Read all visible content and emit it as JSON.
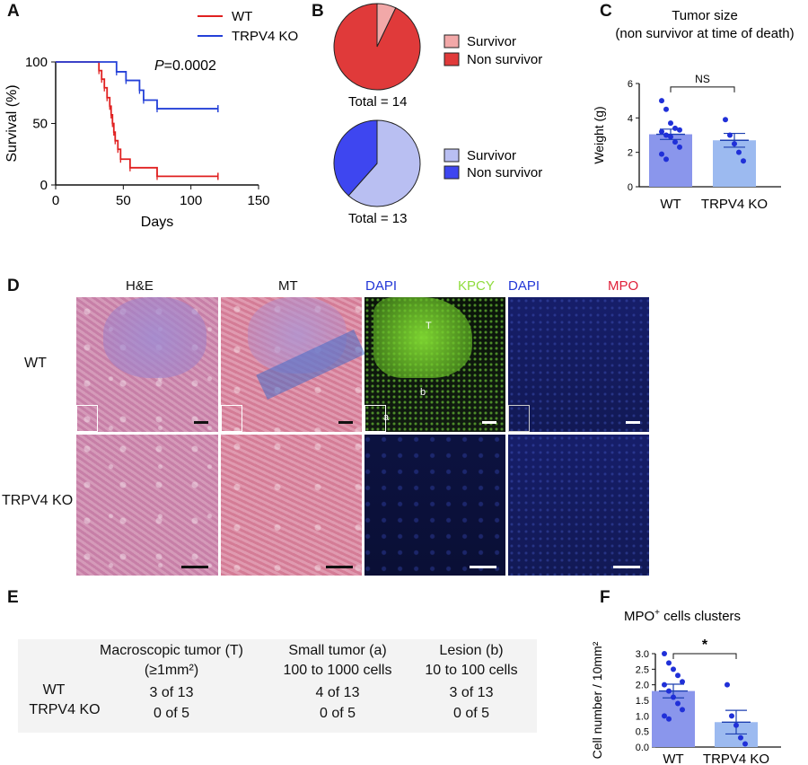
{
  "panels": {
    "A": {
      "label": "A",
      "legend": [
        {
          "name": "WT",
          "color": "#e02020"
        },
        {
          "name": "TRPV4 KO",
          "color": "#2440d8"
        }
      ],
      "pvalue_prefix": "P",
      "pvalue_rest": "=0.0002"
    },
    "B": {
      "label": "B",
      "legend_top": [
        {
          "name": "Survivor",
          "color": "#f2a8a8"
        },
        {
          "name": "Non survivor",
          "color": "#e03a3a"
        }
      ],
      "legend_bottom": [
        {
          "name": "Survivor",
          "color": "#b9bff2"
        },
        {
          "name": "Non survivor",
          "color": "#3e46f0"
        }
      ],
      "total_top": "Total = 14",
      "total_bottom": "Total = 13"
    },
    "C": {
      "label": "C",
      "title_line1": "Tumor size",
      "title_line2": "(non survivor at time of death)",
      "sig": "NS"
    },
    "D": {
      "label": "D",
      "col_he": "H&E",
      "col_mt": "MT",
      "col_dapi1": "DAPI",
      "col_kpcy": "KPCY",
      "col_dapi2": "DAPI",
      "col_mpo": "MPO",
      "row_wt": "WT",
      "row_ko": "TRPV4 KO",
      "marker_t": "T",
      "marker_b": "b",
      "marker_a": "a",
      "colors": {
        "dapi": "#2236d6",
        "kpcy": "#8fdc3c",
        "mpo": "#e0203a"
      }
    },
    "E": {
      "label": "E",
      "headers": [
        {
          "line1": "Macroscopic tumor (T)",
          "line2": "(≥1mm²)"
        },
        {
          "line1": "Small tumor (a)",
          "line2": "100 to 1000 cells"
        },
        {
          "line1": "Lesion (b)",
          "line2": "10 to 100 cells"
        }
      ],
      "rows": [
        {
          "name": "WT",
          "values": [
            "3 of 13",
            "4 of 13",
            "3 of 13"
          ]
        },
        {
          "name": "TRPV4 KO",
          "values": [
            "0 of 5",
            "0 of 5",
            "0 of 5"
          ]
        }
      ]
    },
    "F": {
      "label": "F",
      "title_main": "MPO",
      "title_sup": "+",
      "title_rest": " cells clusters",
      "sig": "*"
    }
  },
  "chart_data": [
    {
      "type": "line",
      "title": "",
      "xlabel": "Days",
      "ylabel": "Survival (%)",
      "xlim": [
        0,
        150
      ],
      "ylim": [
        0,
        100
      ],
      "xticks": [
        0,
        50,
        100,
        150
      ],
      "yticks": [
        0,
        50,
        100
      ],
      "series": [
        {
          "name": "WT",
          "color": "#e02020",
          "steps": [
            [
              0,
              100
            ],
            [
              32,
              100
            ],
            [
              32,
              93
            ],
            [
              34,
              93
            ],
            [
              34,
              86
            ],
            [
              36,
              86
            ],
            [
              36,
              79
            ],
            [
              38,
              79
            ],
            [
              38,
              71
            ],
            [
              40,
              71
            ],
            [
              40,
              64
            ],
            [
              41,
              64
            ],
            [
              41,
              57
            ],
            [
              42,
              57
            ],
            [
              42,
              50
            ],
            [
              43,
              50
            ],
            [
              43,
              43
            ],
            [
              44,
              43
            ],
            [
              44,
              36
            ],
            [
              46,
              36
            ],
            [
              46,
              29
            ],
            [
              48,
              29
            ],
            [
              48,
              21
            ],
            [
              55,
              21
            ],
            [
              55,
              14
            ],
            [
              75,
              14
            ],
            [
              75,
              7
            ],
            [
              120,
              7
            ]
          ]
        },
        {
          "name": "TRPV4 KO",
          "color": "#2440d8",
          "steps": [
            [
              0,
              100
            ],
            [
              45,
              100
            ],
            [
              45,
              92
            ],
            [
              52,
              92
            ],
            [
              52,
              85
            ],
            [
              62,
              85
            ],
            [
              62,
              77
            ],
            [
              65,
              77
            ],
            [
              65,
              69
            ],
            [
              75,
              69
            ],
            [
              75,
              62
            ],
            [
              120,
              62
            ]
          ]
        }
      ]
    },
    {
      "type": "pie",
      "labels": [
        "Survivor",
        "Non survivor"
      ],
      "values": [
        1,
        13
      ],
      "colors": [
        "#f2a8a8",
        "#e03a3a"
      ],
      "total": 14
    },
    {
      "type": "pie",
      "labels": [
        "Survivor",
        "Non survivor"
      ],
      "values": [
        8,
        5
      ],
      "colors": [
        "#b9bff2",
        "#3e46f0"
      ],
      "total": 13
    },
    {
      "type": "bar",
      "title": "Tumor size",
      "subtitle": "(non survivor at time of death)",
      "categories": [
        "WT",
        "TRPV4 KO"
      ],
      "values": [
        3.05,
        2.7
      ],
      "sem": [
        0.3,
        0.4
      ],
      "colors": [
        "#8a96ec",
        "#9cbaf0"
      ],
      "points": [
        [
          5.0,
          4.5,
          3.7,
          3.4,
          3.3,
          3.2,
          3.0,
          2.9,
          2.6,
          2.3,
          1.9,
          1.6
        ],
        [
          3.9,
          3.0,
          2.5,
          2.0,
          1.5
        ]
      ],
      "ylabel": "Weight (g)",
      "ylim": [
        0,
        6
      ],
      "yticks": [
        0,
        2,
        4,
        6
      ],
      "annotation": "NS"
    },
    {
      "type": "bar",
      "title": "MPO+ cells clusters",
      "categories": [
        "WT",
        "TRPV4 KO"
      ],
      "values": [
        1.8,
        0.8
      ],
      "sem": [
        0.22,
        0.38
      ],
      "colors": [
        "#8a96ec",
        "#9cbaf0"
      ],
      "points": [
        [
          3.0,
          2.7,
          2.5,
          2.3,
          2.1,
          2.0,
          1.8,
          1.6,
          1.4,
          1.2,
          1.0,
          0.9
        ],
        [
          2.0,
          1.0,
          0.7,
          0.3,
          0.1
        ]
      ],
      "ylabel": "Cell number / 10mm²",
      "ylim": [
        0,
        3
      ],
      "yticks": [
        0.0,
        0.5,
        1.0,
        1.5,
        2.0,
        2.5,
        3.0
      ],
      "annotation": "*"
    }
  ]
}
